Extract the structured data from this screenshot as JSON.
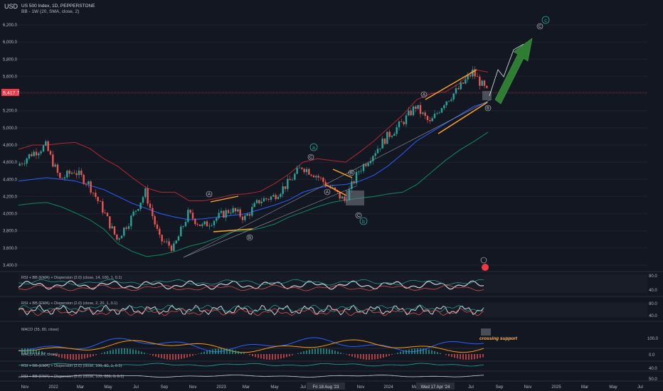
{
  "header": {
    "currency": "USD",
    "symbol_line": "US 500 Index, 1D, PEPPERSTONE",
    "indicator_line": "BB - 1W (20, SMA, close, 2)"
  },
  "price_axis": {
    "ticks": [
      "6,200.0",
      "6,000.0",
      "5,800.0",
      "5,600.0",
      "5,400.0",
      "5,200.0",
      "5,000.0",
      "4,800.0",
      "4,600.0",
      "4,400.0",
      "4,200.0",
      "4,000.0",
      "3,800.0",
      "3,600.0",
      "3,400.0"
    ],
    "current_price_label": "5,417.7"
  },
  "time_axis": {
    "labels": [
      "Nov",
      "2022",
      "Mar",
      "May",
      "Jul",
      "Sep",
      "Nov",
      "2023",
      "Mar",
      "May",
      "Jul",
      "Fri 18 Aug '23",
      "Nov",
      "2024",
      "Mar",
      "Wed 17 Apr '24",
      "Jul",
      "Sep",
      "Nov",
      "2025",
      "Mar",
      "May",
      "Jul"
    ]
  },
  "wave_labels": {
    "A": "A",
    "B": "B",
    "C": "C",
    "a": "a",
    "b": "b",
    "c": "c"
  },
  "panes": {
    "rsi1": {
      "title": "RSI + BB (EMA) + Dispersion (2.0) (close, 14, 100, 1, 0.1)",
      "hi": "80.0",
      "lo": "40.0"
    },
    "rsi2": {
      "title": "RSI + BB (EMA) + Dispersion (2.0) (close, 2, 20, 1, 0.1)",
      "hi": "80.0",
      "lo": "40.0"
    },
    "macd": {
      "title": "MACD (35, 80, close)",
      "hi": "100.0",
      "mid": "0.0",
      "note": "crossing support"
    },
    "macd2": {
      "title": "MACD (18.26, close)"
    },
    "rsi3": {
      "title": "RSI + BB (EMA) + Dispersion (2.0) (close, 100, 80, 1, 0.1)",
      "v": "40.0"
    },
    "rsi4": {
      "title": "RSI + BB (EMA) + Dispersion (2.0) (close, 100, 800, 3, 0.1)",
      "v": "50.0"
    }
  },
  "colors": {
    "background": "#131722",
    "up": "#26a69a",
    "down": "#ef5350",
    "bb_upper": "#b22833",
    "bb_basis": "#2962ff",
    "bb_lower": "#0f8a5f",
    "pattern": "#ffa726",
    "arrow": "#2e7d32",
    "price_tag": "#f23645"
  },
  "chart_data": {
    "type": "line",
    "title": "US 500 Index, 1D, PEPPERSTONE",
    "ylim": [
      3400,
      6300
    ],
    "x": [
      "2021-11",
      "2021-12",
      "2022-01",
      "2022-02",
      "2022-03",
      "2022-04",
      "2022-05",
      "2022-06",
      "2022-07",
      "2022-08",
      "2022-09",
      "2022-10",
      "2022-11",
      "2022-12",
      "2023-01",
      "2023-02",
      "2023-03",
      "2023-04",
      "2023-05",
      "2023-06",
      "2023-07",
      "2023-08",
      "2023-09",
      "2023-10",
      "2023-11",
      "2023-12",
      "2024-01",
      "2024-02",
      "2024-03",
      "2024-04",
      "2024-05",
      "2024-06",
      "2024-07",
      "2024-08"
    ],
    "series": [
      {
        "name": "US 500 Index",
        "values": [
          4560,
          4700,
          4790,
          4400,
          4500,
          4350,
          4050,
          3700,
          3950,
          4250,
          3700,
          3600,
          4000,
          3850,
          3950,
          4050,
          3950,
          4150,
          4200,
          4350,
          4550,
          4450,
          4300,
          4150,
          4500,
          4700,
          4900,
          5050,
          5250,
          5050,
          5300,
          5450,
          5650,
          5420
        ]
      },
      {
        "name": "BB upper",
        "values": [
          4750,
          4800,
          4800,
          4820,
          4830,
          4760,
          4640,
          4550,
          4420,
          4300,
          4250,
          4250,
          4150,
          4150,
          4180,
          4220,
          4230,
          4260,
          4350,
          4460,
          4600,
          4640,
          4620,
          4600,
          4720,
          4850,
          5000,
          5150,
          5330,
          5400,
          5420,
          5520,
          5680,
          5650
        ]
      },
      {
        "name": "BB basis",
        "values": [
          4380,
          4400,
          4420,
          4400,
          4380,
          4330,
          4280,
          4200,
          4120,
          4060,
          4000,
          3960,
          3930,
          3940,
          3960,
          3980,
          4000,
          4050,
          4100,
          4160,
          4250,
          4300,
          4330,
          4340,
          4380,
          4450,
          4560,
          4700,
          4850,
          4950,
          5050,
          5150,
          5250,
          5300
        ]
      },
      {
        "name": "BB lower",
        "values": [
          4100,
          4120,
          4130,
          4080,
          4010,
          3930,
          3820,
          3650,
          3560,
          3500,
          3520,
          3560,
          3620,
          3660,
          3720,
          3790,
          3800,
          3830,
          3880,
          3960,
          4020,
          4080,
          4130,
          4160,
          4180,
          4200,
          4230,
          4250,
          4340,
          4480,
          4620,
          4740,
          4840,
          4950
        ]
      }
    ]
  }
}
